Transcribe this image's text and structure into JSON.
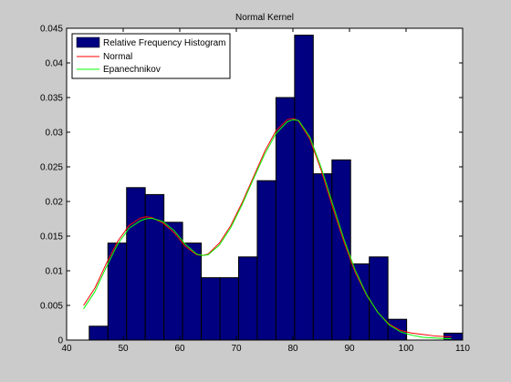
{
  "chart_data": {
    "type": "bar",
    "title": "Normal Kernel",
    "xlabel": "",
    "ylabel": "",
    "xlim": [
      40,
      110
    ],
    "ylim": [
      0,
      0.045
    ],
    "xticks": [
      "40",
      "50",
      "60",
      "70",
      "80",
      "90",
      "100",
      "110"
    ],
    "yticks": [
      "0",
      "0.005",
      "0.01",
      "0.015",
      "0.02",
      "0.025",
      "0.03",
      "0.035",
      "0.04",
      "0.045"
    ],
    "grid": false,
    "legend_position": "top-left",
    "colors": {
      "bars": "#000080",
      "normal": "#ff0000",
      "epanechnikov": "#00ff00",
      "figure_bg": "#cbcbcb",
      "axes_bg": "#ffffff"
    },
    "histogram": {
      "name": "Relative Frequency Histogram",
      "bin_width": 3.3,
      "bin_starts": [
        44,
        47.3,
        50.6,
        53.9,
        57.2,
        60.5,
        63.8,
        67.1,
        70.4,
        73.7,
        77.0,
        80.3,
        83.6,
        86.9,
        90.2,
        93.5,
        96.8,
        100.1,
        103.4,
        106.7
      ],
      "values": [
        0.002,
        0.014,
        0.022,
        0.021,
        0.017,
        0.014,
        0.009,
        0.009,
        0.012,
        0.023,
        0.035,
        0.044,
        0.024,
        0.026,
        0.011,
        0.012,
        0.003,
        0,
        0,
        0.001
      ]
    },
    "series": [
      {
        "name": "Normal",
        "x": [
          43,
          45,
          47,
          49,
          51,
          53,
          54,
          55,
          57,
          59,
          61,
          63,
          64,
          65,
          67,
          69,
          71,
          73,
          75,
          77,
          79,
          80,
          81,
          83,
          85,
          87,
          89,
          91,
          93,
          95,
          97,
          99,
          101,
          103,
          105,
          107,
          108
        ],
        "values": [
          0.005,
          0.0075,
          0.011,
          0.0142,
          0.0165,
          0.0176,
          0.0178,
          0.0177,
          0.0169,
          0.0155,
          0.0135,
          0.0123,
          0.0122,
          0.0124,
          0.014,
          0.0165,
          0.0198,
          0.0235,
          0.0272,
          0.0302,
          0.0318,
          0.032,
          0.0316,
          0.029,
          0.0245,
          0.0192,
          0.0142,
          0.0098,
          0.0065,
          0.004,
          0.0023,
          0.0014,
          0.001,
          0.0008,
          0.0006,
          0.0005,
          0.0005
        ]
      },
      {
        "name": "Epanechnikov",
        "x": [
          43,
          45,
          47,
          49,
          51,
          53,
          54,
          55,
          57,
          59,
          61,
          63,
          64,
          65,
          67,
          69,
          71,
          73,
          75,
          77,
          79,
          80,
          81,
          83,
          85,
          87,
          89,
          91,
          93,
          95,
          97,
          99,
          101,
          103,
          105,
          107,
          108
        ],
        "values": [
          0.0045,
          0.007,
          0.0105,
          0.0138,
          0.0161,
          0.0172,
          0.0175,
          0.0176,
          0.0171,
          0.0158,
          0.0138,
          0.0124,
          0.0122,
          0.0123,
          0.0137,
          0.0162,
          0.0195,
          0.0232,
          0.0268,
          0.0298,
          0.0315,
          0.0318,
          0.0317,
          0.0293,
          0.0249,
          0.0197,
          0.0146,
          0.0101,
          0.0066,
          0.004,
          0.0022,
          0.0012,
          0.0007,
          0.0004,
          0.0003,
          0.0002,
          0.0002
        ]
      }
    ]
  }
}
